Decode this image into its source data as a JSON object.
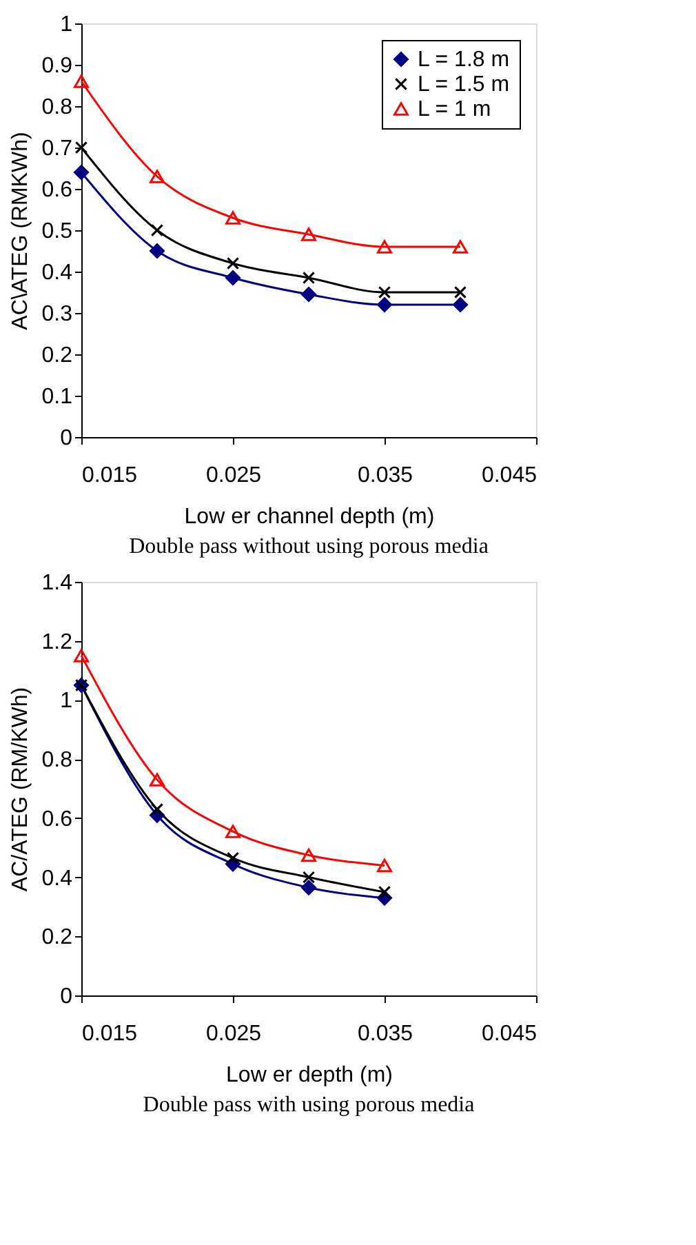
{
  "chart_data": [
    {
      "type": "line",
      "xlabel": "Low er channel depth (m)",
      "ylabel": "AC\\ATEG (RMKWh)",
      "annotations": [
        "Double pass without using porous media"
      ],
      "x": [
        0.015,
        0.02,
        0.025,
        0.03,
        0.035,
        0.04
      ],
      "xlim": [
        0.015,
        0.045
      ],
      "xticks": [
        0.015,
        0.025,
        0.035,
        0.045
      ],
      "ylim": [
        0,
        1
      ],
      "yticks": [
        0,
        0.1,
        0.2,
        0.3,
        0.4,
        0.5,
        0.6,
        0.7,
        0.8,
        0.9,
        1
      ],
      "grid": false,
      "legend": "top right",
      "series": [
        {
          "name": "L = 1.8 m",
          "color": "#000080",
          "marker": "diamond",
          "values": [
            0.64,
            0.45,
            0.385,
            0.345,
            0.32,
            0.32
          ]
        },
        {
          "name": "L = 1.5 m",
          "color": "#000000",
          "marker": "cross",
          "values": [
            0.7,
            0.5,
            0.42,
            0.385,
            0.35,
            0.35
          ]
        },
        {
          "name": "L = 1 m",
          "color": "#ff0000",
          "marker": "triangle",
          "values": [
            0.86,
            0.63,
            0.53,
            0.49,
            0.46,
            0.46
          ]
        }
      ]
    },
    {
      "type": "line",
      "xlabel": "Low er depth (m)",
      "ylabel": "AC/ATEG (RM/KWh)",
      "annotations": [
        "Double pass with using porous media"
      ],
      "x": [
        0.015,
        0.02,
        0.025,
        0.03,
        0.035
      ],
      "xlim": [
        0.015,
        0.045
      ],
      "xticks": [
        0.015,
        0.025,
        0.035,
        0.045
      ],
      "ylim": [
        0,
        1.4
      ],
      "yticks": [
        0,
        0.2,
        0.4,
        0.6,
        0.8,
        1,
        1.2,
        1.4
      ],
      "grid": false,
      "legend": "top right",
      "series": [
        {
          "name": "L = 1.8 m",
          "color": "#000080",
          "marker": "diamond",
          "values": [
            1.05,
            0.61,
            0.445,
            0.365,
            0.33
          ]
        },
        {
          "name": "L = 1.5 m",
          "color": "#000000",
          "marker": "cross",
          "values": [
            1.05,
            0.63,
            0.465,
            0.4,
            0.35
          ]
        },
        {
          "name": "L = 1 m",
          "color": "#ff0000",
          "marker": "triangle",
          "values": [
            1.15,
            0.73,
            0.555,
            0.475,
            0.44
          ]
        }
      ]
    }
  ]
}
